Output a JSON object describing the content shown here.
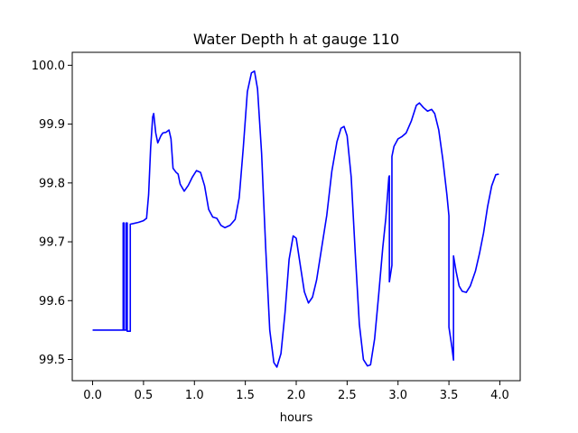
{
  "chart_data": {
    "type": "line",
    "title": "Water Depth h at gauge 110",
    "xlabel": "hours",
    "ylabel": "",
    "xlim": [
      -0.2,
      4.2
    ],
    "ylim": [
      99.464,
      100.022
    ],
    "grid": false,
    "line_color": "#0000ff",
    "x_ticks": [
      {
        "value": 0.0,
        "label": "0.0"
      },
      {
        "value": 0.5,
        "label": "0.5"
      },
      {
        "value": 1.0,
        "label": "1.0"
      },
      {
        "value": 1.5,
        "label": "1.5"
      },
      {
        "value": 2.0,
        "label": "2.0"
      },
      {
        "value": 2.5,
        "label": "2.5"
      },
      {
        "value": 3.0,
        "label": "3.0"
      },
      {
        "value": 3.5,
        "label": "3.5"
      },
      {
        "value": 4.0,
        "label": "4.0"
      }
    ],
    "y_ticks": [
      {
        "value": 99.5,
        "label": "99.5"
      },
      {
        "value": 99.6,
        "label": "99.6"
      },
      {
        "value": 99.7,
        "label": "99.7"
      },
      {
        "value": 99.8,
        "label": "99.8"
      },
      {
        "value": 99.9,
        "label": "99.9"
      },
      {
        "value": 100.0,
        "label": "100.0"
      }
    ],
    "series": [
      {
        "name": "",
        "points": [
          [
            0.0,
            99.55
          ],
          [
            0.29,
            99.55
          ],
          [
            0.3,
            99.55
          ],
          [
            0.3,
            99.732
          ],
          [
            0.31,
            99.732
          ],
          [
            0.31,
            99.55
          ],
          [
            0.33,
            99.55
          ],
          [
            0.33,
            99.732
          ],
          [
            0.34,
            99.732
          ],
          [
            0.34,
            99.548
          ],
          [
            0.37,
            99.548
          ],
          [
            0.37,
            99.73
          ],
          [
            0.4,
            99.731
          ],
          [
            0.45,
            99.733
          ],
          [
            0.5,
            99.736
          ],
          [
            0.53,
            99.74
          ],
          [
            0.55,
            99.78
          ],
          [
            0.57,
            99.86
          ],
          [
            0.59,
            99.912
          ],
          [
            0.6,
            99.918
          ],
          [
            0.62,
            99.885
          ],
          [
            0.64,
            99.868
          ],
          [
            0.67,
            99.88
          ],
          [
            0.69,
            99.885
          ],
          [
            0.72,
            99.886
          ],
          [
            0.75,
            99.89
          ],
          [
            0.77,
            99.875
          ],
          [
            0.79,
            99.825
          ],
          [
            0.82,
            99.818
          ],
          [
            0.84,
            99.815
          ],
          [
            0.86,
            99.798
          ],
          [
            0.9,
            99.786
          ],
          [
            0.94,
            99.796
          ],
          [
            0.98,
            99.81
          ],
          [
            1.02,
            99.821
          ],
          [
            1.06,
            99.818
          ],
          [
            1.1,
            99.795
          ],
          [
            1.14,
            99.755
          ],
          [
            1.18,
            99.742
          ],
          [
            1.22,
            99.74
          ],
          [
            1.26,
            99.728
          ],
          [
            1.3,
            99.724
          ],
          [
            1.35,
            99.728
          ],
          [
            1.4,
            99.738
          ],
          [
            1.44,
            99.775
          ],
          [
            1.48,
            99.86
          ],
          [
            1.52,
            99.955
          ],
          [
            1.56,
            99.987
          ],
          [
            1.59,
            99.99
          ],
          [
            1.62,
            99.96
          ],
          [
            1.66,
            99.85
          ],
          [
            1.7,
            99.69
          ],
          [
            1.74,
            99.55
          ],
          [
            1.78,
            99.495
          ],
          [
            1.81,
            99.487
          ],
          [
            1.85,
            99.51
          ],
          [
            1.89,
            99.58
          ],
          [
            1.93,
            99.67
          ],
          [
            1.97,
            99.71
          ],
          [
            2.0,
            99.706
          ],
          [
            2.04,
            99.66
          ],
          [
            2.08,
            99.615
          ],
          [
            2.12,
            99.596
          ],
          [
            2.16,
            99.606
          ],
          [
            2.2,
            99.635
          ],
          [
            2.25,
            99.69
          ],
          [
            2.3,
            99.745
          ],
          [
            2.35,
            99.82
          ],
          [
            2.4,
            99.87
          ],
          [
            2.44,
            99.893
          ],
          [
            2.47,
            99.896
          ],
          [
            2.5,
            99.88
          ],
          [
            2.54,
            99.81
          ],
          [
            2.58,
            99.68
          ],
          [
            2.62,
            99.56
          ],
          [
            2.66,
            99.5
          ],
          [
            2.7,
            99.489
          ],
          [
            2.73,
            99.491
          ],
          [
            2.77,
            99.535
          ],
          [
            2.81,
            99.61
          ],
          [
            2.85,
            99.69
          ],
          [
            2.88,
            99.74
          ],
          [
            2.91,
            99.81
          ],
          [
            2.915,
            99.812
          ],
          [
            2.915,
            99.632
          ],
          [
            2.94,
            99.66
          ],
          [
            2.94,
            99.845
          ],
          [
            2.96,
            99.862
          ],
          [
            3.0,
            99.875
          ],
          [
            3.04,
            99.879
          ],
          [
            3.08,
            99.885
          ],
          [
            3.13,
            99.905
          ],
          [
            3.18,
            99.932
          ],
          [
            3.21,
            99.936
          ],
          [
            3.25,
            99.928
          ],
          [
            3.29,
            99.922
          ],
          [
            3.33,
            99.925
          ],
          [
            3.36,
            99.918
          ],
          [
            3.4,
            99.89
          ],
          [
            3.44,
            99.84
          ],
          [
            3.48,
            99.78
          ],
          [
            3.5,
            99.744
          ],
          [
            3.5,
            99.555
          ],
          [
            3.53,
            99.52
          ],
          [
            3.545,
            99.499
          ],
          [
            3.545,
            99.676
          ],
          [
            3.57,
            99.65
          ],
          [
            3.6,
            99.625
          ],
          [
            3.63,
            99.616
          ],
          [
            3.67,
            99.614
          ],
          [
            3.71,
            99.625
          ],
          [
            3.76,
            99.65
          ],
          [
            3.8,
            99.68
          ],
          [
            3.84,
            99.715
          ],
          [
            3.88,
            99.76
          ],
          [
            3.92,
            99.795
          ],
          [
            3.96,
            99.814
          ],
          [
            3.99,
            99.815
          ]
        ]
      }
    ]
  }
}
